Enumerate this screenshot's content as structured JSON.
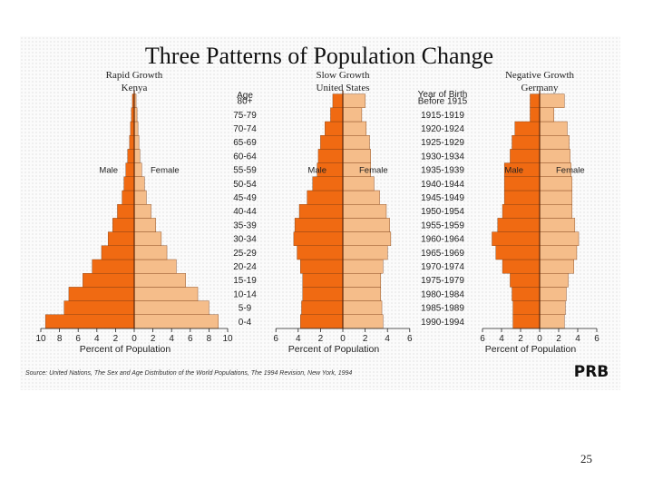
{
  "page": {
    "slide_number": "25"
  },
  "figure": {
    "title": "Three Patterns of Population Change",
    "age_header": "Age",
    "birth_header": "Year of Birth",
    "source": "Source: United Nations, The Sex and Age Distribution of the World Populations, The 1994 Revision, New York, 1994",
    "logo_text": "PRB",
    "colors": {
      "male": "#f06a12",
      "female": "#f5bd8a",
      "outline": "#7a3a10"
    }
  },
  "chart_data": [
    {
      "type": "population-pyramid",
      "title": "Rapid Growth",
      "subtitle": "Kenya",
      "left_label": "Male",
      "right_label": "Female",
      "xlabel": "Percent of Population",
      "x_ticks": [
        "10",
        "8",
        "6",
        "4",
        "2",
        "0",
        "2",
        "4",
        "6",
        "8",
        "10"
      ],
      "xlim": [
        -10,
        10
      ],
      "age_groups": [
        "0-4",
        "5-9",
        "10-14",
        "15-19",
        "20-24",
        "25-29",
        "30-34",
        "35-39",
        "40-44",
        "45-49",
        "50-54",
        "55-59",
        "60-64",
        "65-69",
        "70-74",
        "75-79",
        "80+"
      ],
      "male": [
        9.5,
        7.5,
        7.0,
        5.5,
        4.5,
        3.5,
        2.8,
        2.3,
        1.8,
        1.3,
        1.1,
        0.9,
        0.7,
        0.5,
        0.4,
        0.3,
        0.2
      ],
      "female": [
        9.0,
        8.0,
        6.8,
        5.5,
        4.5,
        3.5,
        2.9,
        2.3,
        1.8,
        1.3,
        1.1,
        0.8,
        0.6,
        0.5,
        0.4,
        0.3,
        0.2
      ]
    },
    {
      "type": "population-pyramid",
      "title": "Slow Growth",
      "subtitle": "United States",
      "left_label": "Male",
      "right_label": "Female",
      "xlabel": "Percent of Population",
      "x_ticks": [
        "6",
        "4",
        "2",
        "0",
        "2",
        "4",
        "6"
      ],
      "xlim": [
        -6,
        6
      ],
      "age_groups": [
        "0-4",
        "5-9",
        "10-14",
        "15-19",
        "20-24",
        "25-29",
        "30-34",
        "35-39",
        "40-44",
        "45-49",
        "50-54",
        "55-59",
        "60-64",
        "65-69",
        "70-74",
        "75-79",
        "80+"
      ],
      "male": [
        3.8,
        3.7,
        3.6,
        3.6,
        3.8,
        4.1,
        4.4,
        4.3,
        3.9,
        3.2,
        2.7,
        2.3,
        2.2,
        2.0,
        1.6,
        1.1,
        0.9
      ],
      "female": [
        3.6,
        3.5,
        3.4,
        3.4,
        3.6,
        4.0,
        4.3,
        4.2,
        3.9,
        3.3,
        2.8,
        2.5,
        2.5,
        2.4,
        2.1,
        1.7,
        2.0
      ]
    },
    {
      "type": "population-pyramid",
      "title": "Negative Growth",
      "subtitle": "Germany",
      "left_label": "Male",
      "right_label": "Female",
      "xlabel": "Percent of Population",
      "x_ticks": [
        "6",
        "4",
        "2",
        "0",
        "2",
        "4",
        "6"
      ],
      "xlim": [
        -6,
        6
      ],
      "age_groups": [
        "0-4",
        "5-9",
        "10-14",
        "15-19",
        "20-24",
        "25-29",
        "30-34",
        "35-39",
        "40-44",
        "45-49",
        "50-54",
        "55-59",
        "60-64",
        "65-69",
        "70-74",
        "75-79",
        "80+"
      ],
      "birth_years": [
        "1990-1994",
        "1985-1989",
        "1980-1984",
        "1975-1979",
        "1970-1974",
        "1965-1969",
        "1960-1964",
        "1955-1959",
        "1950-1954",
        "1945-1949",
        "1940-1944",
        "1935-1939",
        "1930-1934",
        "1925-1929",
        "1920-1924",
        "1915-1919",
        "Before 1915"
      ],
      "male": [
        2.8,
        2.8,
        2.9,
        3.1,
        3.9,
        4.6,
        5.0,
        4.4,
        3.9,
        3.7,
        3.7,
        3.7,
        3.1,
        2.9,
        2.6,
        1.0,
        1.0
      ],
      "female": [
        2.6,
        2.7,
        2.8,
        3.0,
        3.6,
        3.9,
        4.1,
        3.7,
        3.4,
        3.4,
        3.4,
        3.3,
        3.2,
        3.1,
        2.9,
        1.5,
        2.6
      ]
    }
  ]
}
